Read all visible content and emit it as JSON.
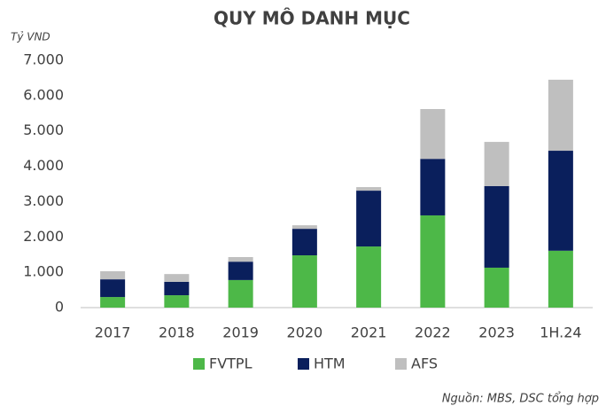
{
  "chart_data": {
    "type": "stacked_bar",
    "title": "QUY MÔ DANH MỤC",
    "y_label": "Tỷ VND",
    "source": "Nguồn: MBS, DSC tổng hợp",
    "categories": [
      "2017",
      "2018",
      "2019",
      "2020",
      "2021",
      "2022",
      "2023",
      "1H.24"
    ],
    "series": [
      {
        "name": "FVTPL",
        "color": "#4db848",
        "values": [
          300,
          350,
          780,
          1480,
          1730,
          2610,
          1130,
          1610
        ]
      },
      {
        "name": "HTM",
        "color": "#0a1f5c",
        "values": [
          500,
          380,
          520,
          750,
          1580,
          1600,
          2310,
          2830
        ]
      },
      {
        "name": "AFS",
        "color": "#bfbfbf",
        "values": [
          230,
          220,
          130,
          100,
          100,
          1410,
          1250,
          2010
        ]
      }
    ],
    "ylim": [
      0,
      7000
    ],
    "yticks": [
      0,
      {
        "value": 1000,
        "label": "1.000"
      },
      {
        "value": 2000,
        "label": "2.000"
      },
      {
        "value": 3000,
        "label": "3.000"
      },
      {
        "value": 4000,
        "label": "4.000"
      },
      {
        "value": 5000,
        "label": "5.000"
      },
      {
        "value": 6000,
        "label": "6.000"
      },
      {
        "value": 7000,
        "label": "7.000"
      }
    ],
    "grid": false,
    "legend": "bottom"
  }
}
